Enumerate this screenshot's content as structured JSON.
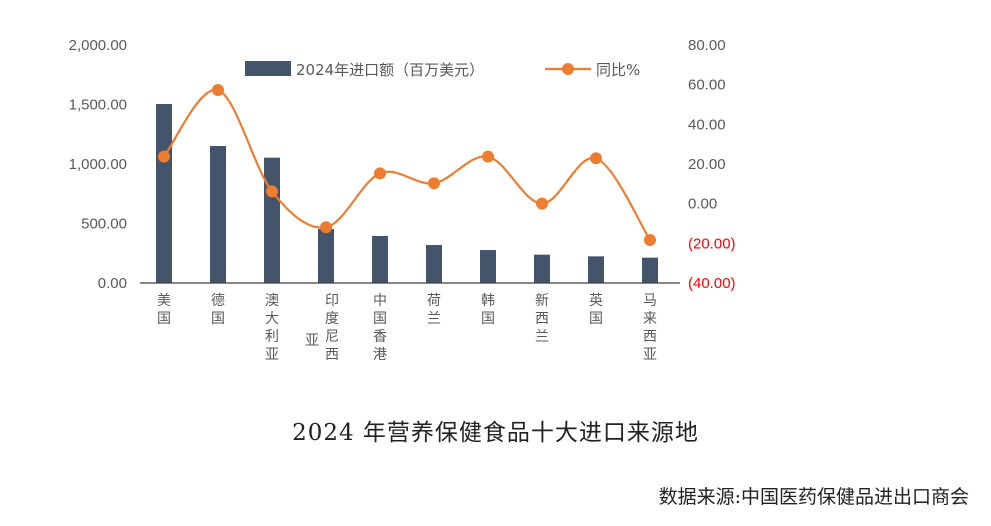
{
  "chart_data": {
    "type": "bar+line",
    "title": "2024 年营养保健食品十大进口来源地",
    "source": "数据来源:中国医药保健品进出口商会",
    "categories": [
      "美国",
      "德国",
      "澳大利亚",
      "印度尼西亚",
      "中国香港",
      "荷兰",
      "韩国",
      "新西兰",
      "英国",
      "马来西亚"
    ],
    "series": [
      {
        "name": "2024年进口额（百万美元）",
        "type": "bar",
        "axis": "left",
        "color": "#44546a",
        "values": [
          1504,
          1151,
          1053,
          454,
          395,
          319,
          277,
          238,
          224,
          213
        ]
      },
      {
        "name": "同比%",
        "type": "line",
        "axis": "right",
        "color": "#ed7d31",
        "values": [
          23.7,
          57.3,
          6.2,
          -11.9,
          15.3,
          10.3,
          23.7,
          0.0,
          22.9,
          -18.3
        ]
      }
    ],
    "left_axis": {
      "ylim": [
        0,
        2000
      ],
      "ticks": [
        "0.00",
        "500.00",
        "1,000.00",
        "1,500.00",
        "2,000.00"
      ]
    },
    "right_axis": {
      "ylim": [
        -40,
        80
      ],
      "ticks": [
        "(40.00)",
        "(20.00)",
        "0.00",
        "20.00",
        "40.00",
        "60.00",
        "80.00"
      ]
    },
    "legend": "top-center",
    "grid": false
  }
}
